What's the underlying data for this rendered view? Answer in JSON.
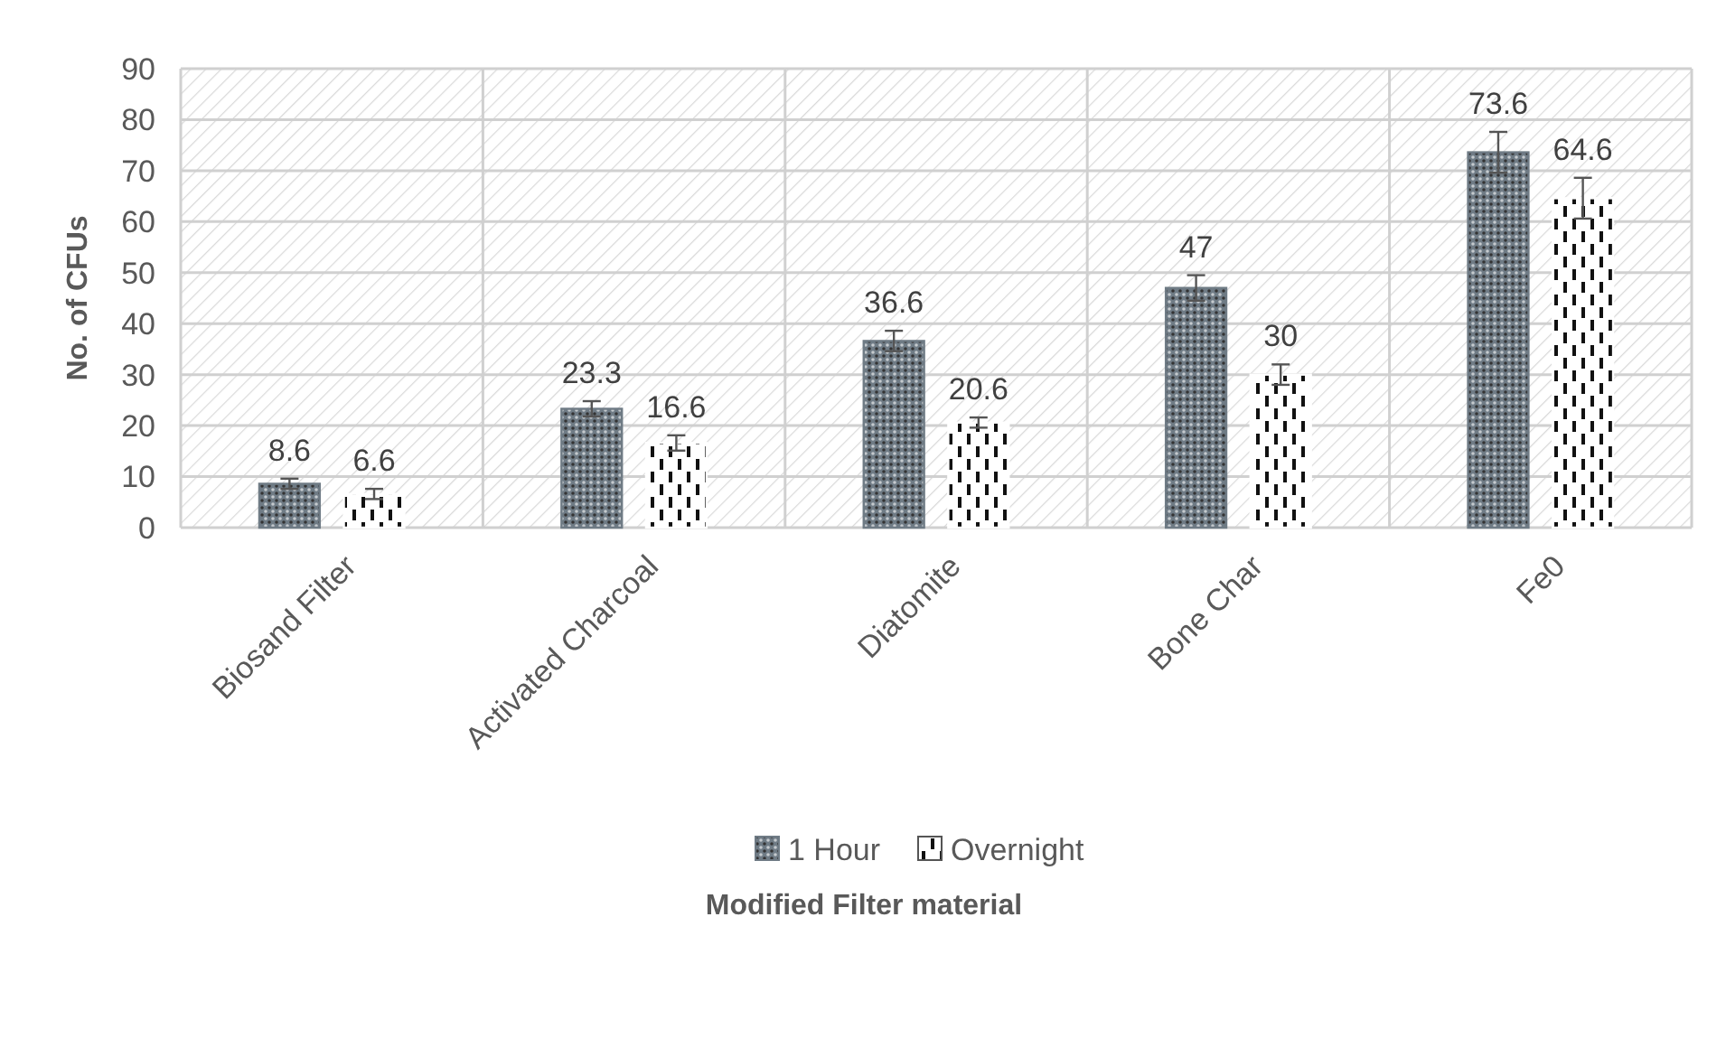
{
  "chart_data": {
    "type": "bar",
    "xlabel": "Modified Filter material",
    "ylabel": "No. of CFUs",
    "categories": [
      "Biosand Filter",
      "Activated Charcoal",
      "Diatomite",
      "Bone Char",
      "Fe0"
    ],
    "series": [
      {
        "name": "1 Hour",
        "color": "#6f7b85",
        "values": [
          8.6,
          23.3,
          36.6,
          47,
          73.6
        ],
        "errors": [
          1,
          1.5,
          2,
          2.5,
          4
        ]
      },
      {
        "name": "Overnight",
        "color": "#ffffff",
        "values": [
          6.6,
          16.6,
          20.6,
          30,
          64.6
        ],
        "errors": [
          1,
          1.5,
          1,
          2,
          4
        ]
      }
    ],
    "ylim": [
      0,
      90
    ],
    "yticks": [
      0,
      10,
      20,
      30,
      40,
      50,
      60,
      70,
      80,
      90
    ],
    "grid": true,
    "legend": "bottom",
    "data_labels": true
  }
}
